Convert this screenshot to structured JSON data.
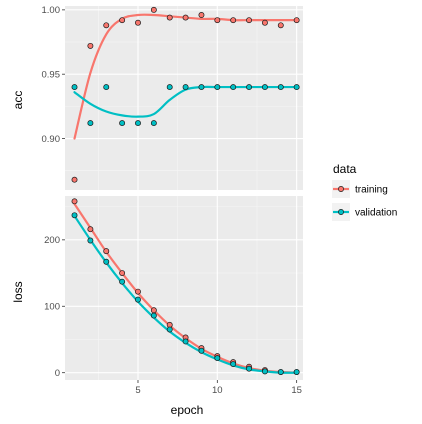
{
  "chart_data": {
    "type": "line",
    "x_title": "epoch",
    "x_ticks": [
      5,
      10,
      15
    ],
    "x_range": [
      0.4,
      15.4
    ],
    "colors": {
      "training": "#F8766D",
      "validation": "#00BFC4"
    },
    "legend": {
      "title": "data",
      "position": "right",
      "entries": [
        {
          "key": "training",
          "label": "training"
        },
        {
          "key": "validation",
          "label": "validation"
        }
      ]
    },
    "panels": [
      {
        "id": "acc",
        "title": "acc",
        "y_range": [
          0.86,
          1.003
        ],
        "y_ticks": [
          0.9,
          0.95,
          1.0
        ],
        "y_tick_labels": [
          "0.90",
          "0.95",
          "1.00"
        ],
        "series": [
          {
            "key": "training",
            "points": [
              [
                1,
                0.868
              ],
              [
                2,
                0.972
              ],
              [
                3,
                0.988
              ],
              [
                4,
                0.992
              ],
              [
                5,
                0.99
              ],
              [
                6,
                1.0
              ],
              [
                7,
                0.994
              ],
              [
                8,
                0.994
              ],
              [
                9,
                0.996
              ],
              [
                10,
                0.992
              ],
              [
                11,
                0.992
              ],
              [
                12,
                0.992
              ],
              [
                13,
                0.99
              ],
              [
                14,
                0.988
              ],
              [
                15,
                0.992
              ]
            ],
            "smooth": [
              [
                1,
                0.9
              ],
              [
                2,
                0.951
              ],
              [
                3,
                0.981
              ],
              [
                4,
                0.993
              ],
              [
                5,
                0.996
              ],
              [
                6,
                0.996
              ],
              [
                7,
                0.995
              ],
              [
                8,
                0.994
              ],
              [
                9,
                0.993
              ],
              [
                10,
                0.993
              ],
              [
                11,
                0.992
              ],
              [
                12,
                0.992
              ],
              [
                13,
                0.992
              ],
              [
                14,
                0.992
              ],
              [
                15,
                0.992
              ]
            ]
          },
          {
            "key": "validation",
            "points": [
              [
                1,
                0.94
              ],
              [
                2,
                0.912
              ],
              [
                3,
                0.94
              ],
              [
                4,
                0.912
              ],
              [
                5,
                0.912
              ],
              [
                6,
                0.912
              ],
              [
                7,
                0.94
              ],
              [
                8,
                0.94
              ],
              [
                9,
                0.94
              ],
              [
                10,
                0.94
              ],
              [
                11,
                0.94
              ],
              [
                12,
                0.94
              ],
              [
                13,
                0.94
              ],
              [
                14,
                0.94
              ],
              [
                15,
                0.94
              ]
            ],
            "smooth": [
              [
                1,
                0.936
              ],
              [
                2,
                0.927
              ],
              [
                3,
                0.921
              ],
              [
                4,
                0.918
              ],
              [
                5,
                0.917
              ],
              [
                6,
                0.919
              ],
              [
                7,
                0.93
              ],
              [
                8,
                0.938
              ],
              [
                9,
                0.94
              ],
              [
                10,
                0.94
              ],
              [
                11,
                0.94
              ],
              [
                12,
                0.94
              ],
              [
                13,
                0.94
              ],
              [
                14,
                0.94
              ],
              [
                15,
                0.94
              ]
            ]
          }
        ]
      },
      {
        "id": "loss",
        "title": "loss",
        "y_range": [
          -11,
          266
        ],
        "y_ticks": [
          0,
          100,
          200
        ],
        "y_tick_labels": [
          "0",
          "100",
          "200"
        ],
        "series": [
          {
            "key": "training",
            "points": [
              [
                1,
                258
              ],
              [
                2,
                216
              ],
              [
                3,
                183
              ],
              [
                4,
                150
              ],
              [
                5,
                122
              ],
              [
                6,
                94
              ],
              [
                7,
                72
              ],
              [
                8,
                53
              ],
              [
                9,
                37
              ],
              [
                10,
                25
              ],
              [
                11,
                16
              ],
              [
                12,
                9
              ],
              [
                13,
                4
              ],
              [
                14,
                1
              ],
              [
                15,
                1
              ]
            ],
            "smooth": [
              [
                1,
                254
              ],
              [
                2,
                218
              ],
              [
                3,
                182
              ],
              [
                4,
                150
              ],
              [
                5,
                120
              ],
              [
                6,
                94
              ],
              [
                7,
                71
              ],
              [
                8,
                52
              ],
              [
                9,
                36
              ],
              [
                10,
                24
              ],
              [
                11,
                14
              ],
              [
                12,
                7
              ],
              [
                13,
                3
              ],
              [
                14,
                1
              ],
              [
                15,
                0
              ]
            ]
          },
          {
            "key": "validation",
            "points": [
              [
                1,
                237
              ],
              [
                2,
                199
              ],
              [
                3,
                167
              ],
              [
                4,
                137
              ],
              [
                5,
                110
              ],
              [
                6,
                86
              ],
              [
                7,
                65
              ],
              [
                8,
                47
              ],
              [
                9,
                33
              ],
              [
                10,
                22
              ],
              [
                11,
                13
              ],
              [
                12,
                6
              ],
              [
                13,
                2
              ],
              [
                14,
                1
              ],
              [
                15,
                1
              ]
            ],
            "smooth": [
              [
                1,
                236
              ],
              [
                2,
                200
              ],
              [
                3,
                166
              ],
              [
                4,
                135
              ],
              [
                5,
                107
              ],
              [
                6,
                83
              ],
              [
                7,
                62
              ],
              [
                8,
                45
              ],
              [
                9,
                31
              ],
              [
                10,
                20
              ],
              [
                11,
                11
              ],
              [
                12,
                5
              ],
              [
                13,
                2
              ],
              [
                14,
                0
              ],
              [
                15,
                0
              ]
            ]
          }
        ]
      }
    ]
  }
}
